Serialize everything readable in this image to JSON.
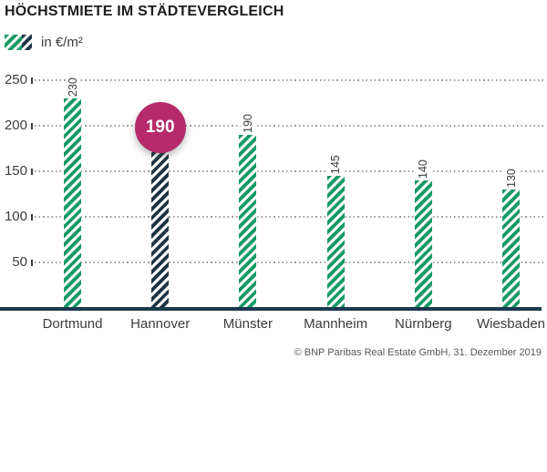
{
  "title": "HÖCHSTMIETE IM STÄDTEVERGLEICH",
  "legend": {
    "label": "in €/m²"
  },
  "footer": {
    "credit": "© BNP Paribas Real Estate GmbH, 31. Dezember 2019"
  },
  "colors": {
    "green": "#169a64",
    "navy": "#1c3545",
    "magenta": "#b62a6c",
    "baseline": "#1a3a49",
    "grid": "#9c9c9c",
    "tick": "#3d3d3d",
    "text": "#3c3c3b",
    "footer_text": "#575756",
    "title_text": "#1d1d1b"
  },
  "chart_data": {
    "type": "bar",
    "title": "HÖCHSTMIETE IM STÄDTEVERGLEICH",
    "unit_label": "in €/m²",
    "categories": [
      "Dortmund",
      "Hannover",
      "Münster",
      "Mannheim",
      "Nürnberg",
      "Wiesbaden"
    ],
    "values": [
      230,
      190,
      190,
      145,
      140,
      130
    ],
    "yticks": [
      50,
      100,
      150,
      200,
      250
    ],
    "ylim": [
      0,
      250
    ],
    "grid": "horizontal-dotted",
    "legend_position": "top-left",
    "bar_style": {
      "default": "green-hatched",
      "highlight": "navy-hatched"
    },
    "highlight": {
      "index": 1,
      "category": "Hannover",
      "value": 190,
      "style": "magenta-circle-badge"
    }
  }
}
